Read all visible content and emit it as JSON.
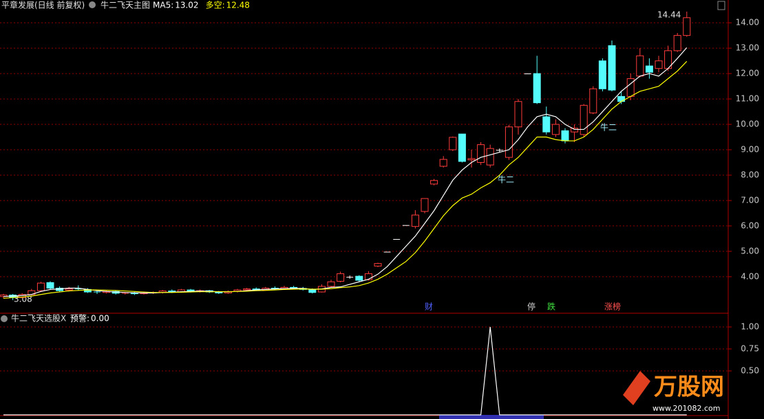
{
  "chart_data": [
    {
      "type": "candlestick",
      "title": "平章发展(日线 前复权)",
      "subtitle": "牛二飞天主图",
      "categories": [
        null,
        null,
        null,
        null,
        null,
        null,
        null,
        null,
        null,
        null,
        null,
        null,
        null,
        null,
        null,
        null,
        null,
        null,
        null,
        null,
        null,
        null,
        null,
        null,
        null,
        null,
        null,
        null,
        null,
        null,
        null,
        null,
        null,
        null,
        null,
        null,
        null,
        null,
        null,
        null,
        null,
        null,
        null,
        null,
        null,
        null,
        null,
        null,
        null,
        null,
        null,
        null,
        null,
        null,
        null,
        null,
        null,
        null,
        null,
        null,
        null,
        null,
        null,
        null,
        null,
        null,
        null,
        null,
        null,
        null,
        null,
        null,
        null,
        null
      ],
      "open": [
        3.22,
        3.28,
        3.18,
        3.3,
        3.45,
        3.77,
        3.55,
        3.47,
        3.52,
        3.5,
        3.4,
        3.38,
        3.42,
        3.35,
        3.36,
        3.33,
        3.36,
        3.38,
        3.44,
        3.4,
        3.48,
        3.42,
        3.45,
        3.4,
        3.36,
        3.42,
        3.48,
        3.52,
        3.48,
        3.55,
        3.52,
        3.58,
        3.54,
        3.5,
        3.4,
        3.62,
        3.82,
        3.98,
        4.02,
        3.88,
        4.42,
        4.97,
        5.47,
        6.02,
        5.98,
        6.57,
        7.65,
        8.35,
        9.0,
        9.62,
        8.6,
        8.5,
        8.4,
        8.98,
        8.7,
        9.9,
        11.99,
        12.0,
        10.3,
        9.6,
        9.75,
        9.7,
        9.6,
        10.45,
        12.5,
        13.1,
        11.1,
        11.1,
        11.9,
        12.3,
        12.2,
        12.2,
        12.9,
        13.5
      ],
      "high": [
        3.33,
        3.32,
        3.35,
        3.52,
        3.8,
        3.82,
        3.62,
        3.6,
        3.66,
        3.55,
        3.45,
        3.47,
        3.45,
        3.4,
        3.4,
        3.4,
        3.42,
        3.48,
        3.5,
        3.52,
        3.52,
        3.5,
        3.48,
        3.44,
        3.46,
        3.52,
        3.56,
        3.58,
        3.6,
        3.62,
        3.64,
        3.64,
        3.6,
        3.54,
        3.7,
        3.88,
        4.2,
        4.05,
        4.06,
        4.22,
        4.55,
        4.97,
        5.47,
        6.02,
        6.62,
        7.08,
        7.85,
        8.75,
        9.52,
        9.62,
        9.0,
        9.3,
        9.2,
        9.05,
        9.98,
        11.0,
        11.99,
        12.7,
        10.7,
        10.2,
        9.85,
        10.0,
        10.8,
        11.5,
        12.6,
        13.3,
        11.3,
        12.0,
        13.0,
        12.6,
        12.7,
        13.1,
        13.6,
        14.44
      ],
      "low": [
        3.15,
        3.08,
        3.15,
        3.26,
        3.4,
        3.5,
        3.4,
        3.42,
        3.45,
        3.36,
        3.32,
        3.34,
        3.3,
        3.3,
        3.28,
        3.3,
        3.32,
        3.34,
        3.36,
        3.37,
        3.38,
        3.38,
        3.36,
        3.32,
        3.33,
        3.38,
        3.44,
        3.44,
        3.45,
        3.48,
        3.48,
        3.5,
        3.46,
        3.34,
        3.38,
        3.58,
        3.78,
        3.92,
        3.82,
        3.85,
        4.38,
        4.97,
        5.47,
        6.02,
        5.9,
        6.5,
        7.6,
        8.3,
        8.95,
        8.5,
        8.3,
        8.4,
        8.3,
        8.9,
        8.6,
        9.6,
        11.99,
        10.8,
        9.6,
        9.5,
        9.25,
        9.3,
        9.5,
        10.4,
        11.3,
        11.3,
        10.8,
        10.95,
        11.85,
        11.8,
        12.05,
        12.1,
        12.85,
        13.45
      ],
      "close": [
        3.28,
        3.18,
        3.3,
        3.45,
        3.75,
        3.55,
        3.45,
        3.52,
        3.5,
        3.4,
        3.38,
        3.42,
        3.35,
        3.37,
        3.33,
        3.36,
        3.38,
        3.44,
        3.4,
        3.48,
        3.42,
        3.45,
        3.4,
        3.36,
        3.42,
        3.48,
        3.52,
        3.48,
        3.55,
        3.52,
        3.58,
        3.54,
        3.5,
        3.38,
        3.62,
        3.8,
        4.12,
        3.98,
        3.86,
        4.12,
        4.52,
        4.97,
        5.47,
        6.02,
        6.43,
        7.08,
        7.79,
        8.62,
        9.49,
        8.54,
        8.65,
        9.2,
        9.05,
        8.98,
        9.9,
        10.9,
        11.99,
        10.85,
        9.7,
        10.0,
        9.35,
        9.85,
        10.75,
        11.4,
        11.4,
        11.35,
        10.9,
        11.8,
        12.7,
        12.05,
        12.5,
        12.9,
        13.5,
        14.2
      ],
      "up_color": "#ff3c3c",
      "down_color": "#54fcfc",
      "flat_color": "#ffffff",
      "series": [
        {
          "name": "MA5",
          "color": "#ffffff",
          "value_label": "13.02",
          "values": [
            3.22,
            3.24,
            3.26,
            3.3,
            3.42,
            3.5,
            3.52,
            3.55,
            3.55,
            3.5,
            3.45,
            3.42,
            3.4,
            3.38,
            3.37,
            3.36,
            3.36,
            3.38,
            3.39,
            3.41,
            3.42,
            3.44,
            3.43,
            3.41,
            3.41,
            3.42,
            3.45,
            3.48,
            3.5,
            3.52,
            3.53,
            3.54,
            3.54,
            3.5,
            3.52,
            3.58,
            3.6,
            3.7,
            3.8,
            3.9,
            4.1,
            4.4,
            4.8,
            5.2,
            5.6,
            6.1,
            6.6,
            7.2,
            7.8,
            8.2,
            8.5,
            8.7,
            8.8,
            8.9,
            9.0,
            9.4,
            9.9,
            10.3,
            10.4,
            10.3,
            10.0,
            9.8,
            9.8,
            10.1,
            10.5,
            10.9,
            11.3,
            11.6,
            11.9,
            12.0,
            11.9,
            12.2,
            12.6,
            13.02
          ]
        },
        {
          "name": "多空",
          "color": "#ffff00",
          "value_label": "12.48",
          "values": [
            3.15,
            3.18,
            3.2,
            3.24,
            3.3,
            3.36,
            3.4,
            3.44,
            3.46,
            3.48,
            3.48,
            3.47,
            3.46,
            3.44,
            3.42,
            3.4,
            3.38,
            3.38,
            3.38,
            3.39,
            3.4,
            3.41,
            3.41,
            3.41,
            3.41,
            3.42,
            3.43,
            3.45,
            3.46,
            3.48,
            3.5,
            3.51,
            3.52,
            3.51,
            3.51,
            3.53,
            3.57,
            3.6,
            3.65,
            3.75,
            3.9,
            4.1,
            4.35,
            4.6,
            4.95,
            5.4,
            5.9,
            6.4,
            6.8,
            7.1,
            7.25,
            7.5,
            7.7,
            8.0,
            8.4,
            8.7,
            9.1,
            9.5,
            9.5,
            9.4,
            9.35,
            9.35,
            9.5,
            9.8,
            10.2,
            10.6,
            10.9,
            11.1,
            11.3,
            11.4,
            11.5,
            11.8,
            12.1,
            12.48
          ]
        }
      ],
      "ylim": [
        2.59,
        14.41
      ],
      "yticks": [
        {
          "value": 14,
          "label": "14.00"
        },
        {
          "value": 13,
          "label": "13.00"
        },
        {
          "value": 12,
          "label": "12.00"
        },
        {
          "value": 11,
          "label": "11.00"
        },
        {
          "value": 10,
          "label": "10.00"
        },
        {
          "value": 9,
          "label": "9.00"
        },
        {
          "value": 8,
          "label": "8.00"
        },
        {
          "value": 7,
          "label": "7.00"
        },
        {
          "value": 6,
          "label": "6.00"
        },
        {
          "value": 5,
          "label": "5.00"
        },
        {
          "value": 4,
          "label": "4.00"
        }
      ],
      "grid": true,
      "high_label": "14.44",
      "low_label": "3.08",
      "annotations": [
        {
          "text": "牛二",
          "color": "#a0f0ff"
        },
        {
          "text": "牛二",
          "color": "#a0f0ff"
        },
        {
          "text": "财",
          "color": "#5060ff"
        },
        {
          "text": "停",
          "color": "#d0d0d0"
        },
        {
          "text": "跌",
          "color": "#40e040"
        },
        {
          "text": "涨榜",
          "color": "#ff5050"
        }
      ]
    },
    {
      "type": "line",
      "title": "牛二飞天选股X",
      "series": [
        {
          "name": "预警",
          "color": "#ffffff",
          "value_label": "0.00",
          "values": [
            0,
            0,
            0,
            0,
            0,
            0,
            0,
            0,
            0,
            0,
            0,
            0,
            0,
            0,
            0,
            0,
            0,
            0,
            0,
            0,
            0,
            0,
            0,
            0,
            0,
            0,
            0,
            0,
            0,
            0,
            0,
            0,
            0,
            0,
            0,
            0,
            0,
            0,
            0,
            0,
            0,
            0,
            0,
            0,
            0,
            0,
            0,
            0,
            0,
            0,
            0,
            0,
            1,
            0,
            0,
            0,
            0,
            0,
            0,
            0,
            0,
            0,
            0,
            0,
            0,
            0,
            0,
            0,
            0,
            0,
            0,
            0,
            0,
            0
          ]
        }
      ],
      "ylim": [
        0,
        1.125
      ],
      "yticks": [
        {
          "value": 1,
          "label": "1.00"
        },
        {
          "value": 0.75,
          "label": "0.75"
        },
        {
          "value": 0.5,
          "label": "0.50"
        }
      ],
      "grid": true
    }
  ],
  "logo": {
    "text": "万股网",
    "url": "www.201082.com"
  }
}
